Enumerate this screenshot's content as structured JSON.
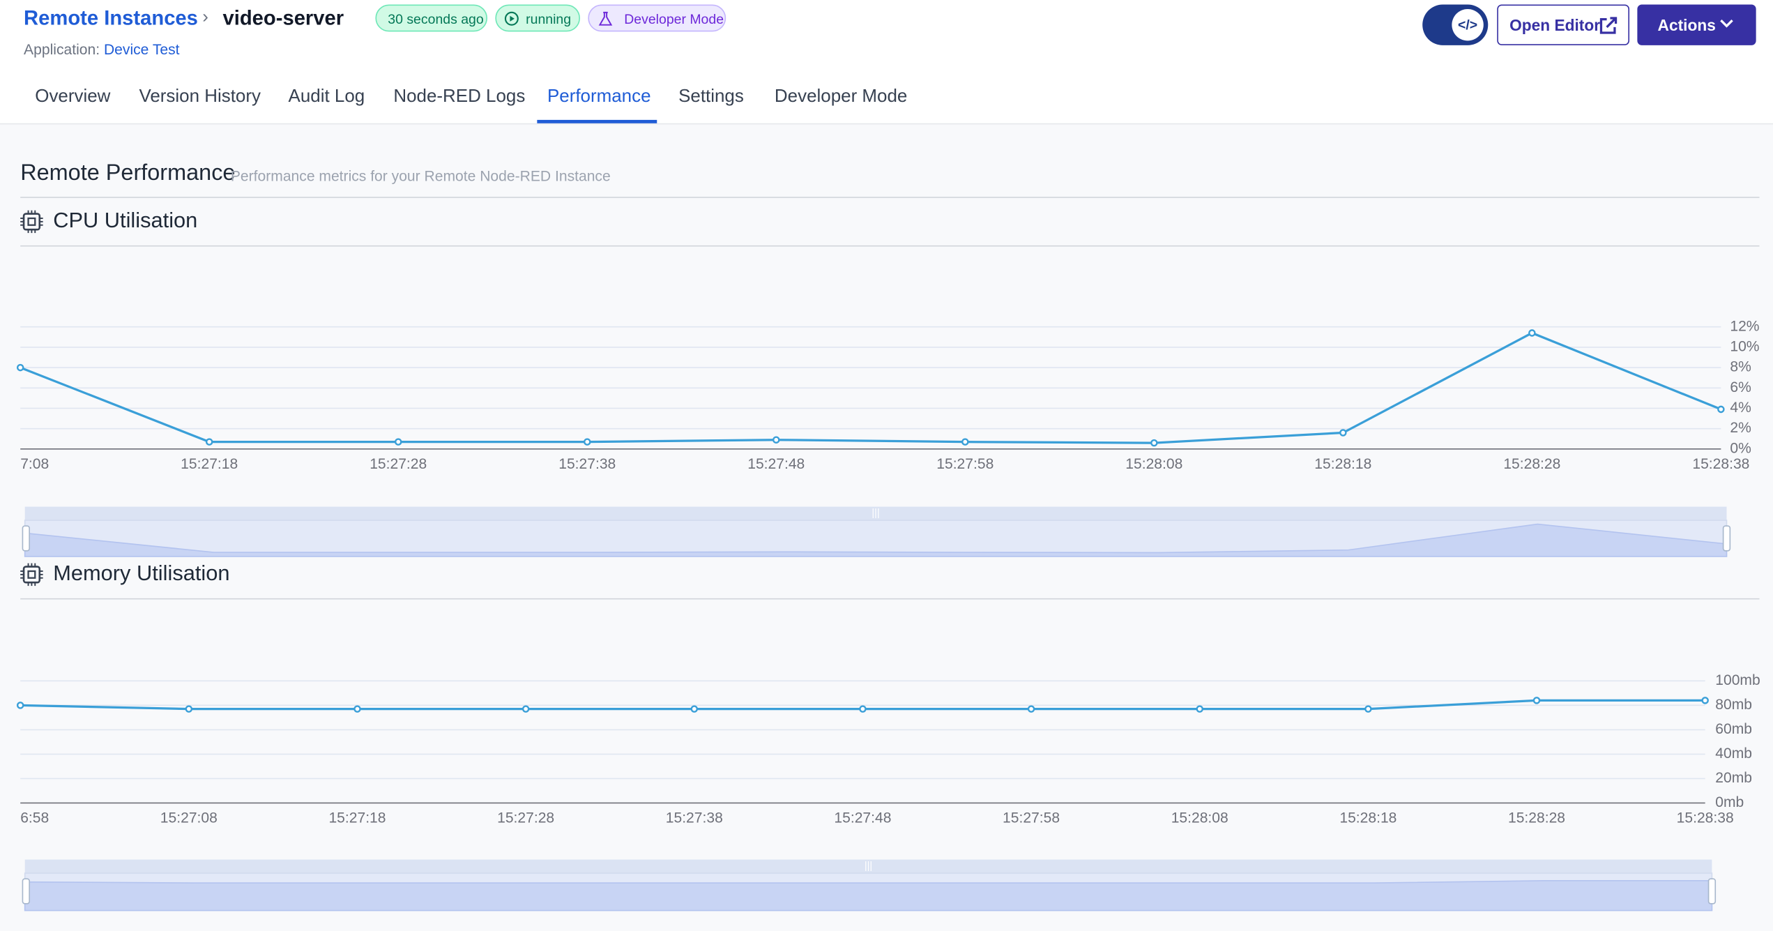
{
  "header": {
    "breadcrumb": "Remote Instances",
    "title": "video-server",
    "badges": [
      "30 seconds ago",
      "running",
      "Developer Mode"
    ],
    "application_label": "Application:",
    "application": "Device Test",
    "buttons": [
      "Open Editor",
      "Actions"
    ]
  },
  "tabs": [
    "Overview",
    "Version History",
    "Audit Log",
    "Node-RED Logs",
    "Performance",
    "Settings",
    "Developer Mode"
  ],
  "section": {
    "title": "Remote Performance",
    "subtitle": "Performance metrics for your Remote Node-RED Instance"
  },
  "chart_data": [
    {
      "type": "line",
      "title": "CPU Utilisation",
      "color": "#3a9fd8",
      "grid": true,
      "categories": [
        "7:08",
        "15:27:18",
        "15:27:28",
        "15:27:38",
        "15:27:48",
        "15:27:58",
        "15:28:08",
        "15:28:18",
        "15:28:28",
        "15:28:38"
      ],
      "values": [
        8.0,
        0.7,
        0.7,
        0.7,
        0.9,
        0.7,
        0.6,
        1.6,
        11.4,
        3.9
      ],
      "ylim": [
        0,
        12
      ],
      "yticks": [
        {
          "value": 0,
          "label": "0%"
        },
        {
          "value": 2,
          "label": "2%"
        },
        {
          "value": 4,
          "label": "4%"
        },
        {
          "value": 6,
          "label": "6%"
        },
        {
          "value": 8,
          "label": "8%"
        },
        {
          "value": 10,
          "label": "10%"
        },
        {
          "value": 12,
          "label": "12%"
        }
      ]
    },
    {
      "type": "line",
      "title": "Memory Utilisation",
      "color": "#3a9fd8",
      "grid": true,
      "categories": [
        "6:58",
        "15:27:08",
        "15:27:18",
        "15:27:28",
        "15:27:38",
        "15:27:48",
        "15:27:58",
        "15:28:08",
        "15:28:18",
        "15:28:28",
        "15:28:38"
      ],
      "values": [
        80,
        77,
        77,
        77,
        77,
        77,
        77,
        77,
        77,
        84,
        84
      ],
      "ylim": [
        0,
        100
      ],
      "yticks": [
        {
          "value": 0,
          "label": "0mb"
        },
        {
          "value": 20,
          "label": "20mb"
        },
        {
          "value": 40,
          "label": "40mb"
        },
        {
          "value": 60,
          "label": "60mb"
        },
        {
          "value": 80,
          "label": "80mb"
        },
        {
          "value": 100,
          "label": "100mb"
        }
      ]
    }
  ]
}
